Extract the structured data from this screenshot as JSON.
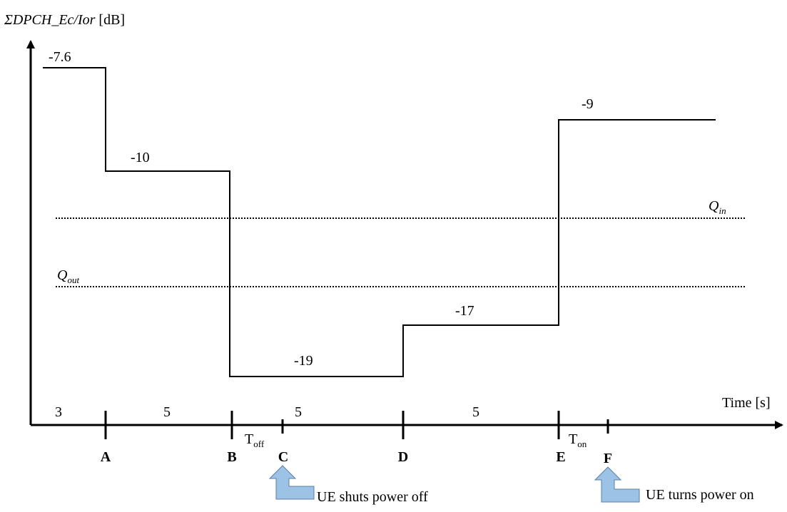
{
  "y_axis_label": {
    "main": "ΣDPCH_Ec/Ior",
    "unit": "[dB]"
  },
  "x_axis_label": "Time [s]",
  "chart_data": {
    "type": "line",
    "x_unit": "s",
    "y_unit": "dB",
    "segments": [
      {
        "from": "start",
        "to": "A",
        "value": -7.6,
        "label": "-7.6"
      },
      {
        "from": "A",
        "to": "B",
        "value": -10,
        "label": "-10"
      },
      {
        "from": "B",
        "to": "D",
        "value": -19,
        "label": "-19"
      },
      {
        "from": "D",
        "to": "E",
        "value": -17,
        "label": "-17"
      },
      {
        "from": "E",
        "to": "end",
        "value": -9,
        "label": "-9"
      }
    ],
    "durations": [
      {
        "between": [
          "start",
          "A"
        ],
        "value": 3,
        "label": "3"
      },
      {
        "between": [
          "A",
          "B"
        ],
        "value": 5,
        "label": "5"
      },
      {
        "between": [
          "B",
          "D"
        ],
        "value": 5,
        "label": "5"
      },
      {
        "between": [
          "D",
          "E"
        ],
        "value": 5,
        "label": "5"
      }
    ],
    "thresholds": [
      {
        "name": "Q",
        "sub": "in"
      },
      {
        "name": "Q",
        "sub": "out"
      }
    ]
  },
  "points": [
    "A",
    "B",
    "C",
    "D",
    "E",
    "F"
  ],
  "intervals": [
    {
      "main": "T",
      "sub": "off"
    },
    {
      "main": "T",
      "sub": "on"
    }
  ],
  "annotations": {
    "power_off": "UE shuts power off",
    "power_on": "UE turns power on"
  },
  "arrow_color": "#9CC3E6"
}
